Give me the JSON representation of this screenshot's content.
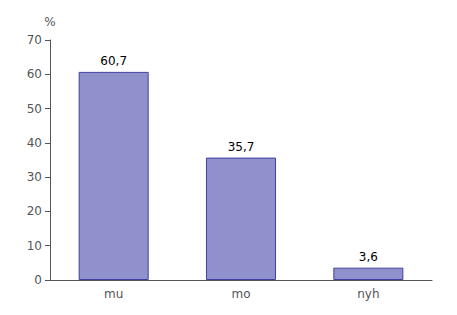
{
  "chart_data": {
    "type": "bar",
    "ylabel": "%",
    "categories": [
      "mu",
      "mo",
      "nyh"
    ],
    "values": [
      60.7,
      35.7,
      3.6
    ],
    "value_labels": [
      "60,7",
      "35,7",
      "3,6"
    ],
    "data_labels": true,
    "color": "#9090cc",
    "ylim": [
      0,
      70
    ],
    "yticks": [
      0,
      10,
      20,
      30,
      40,
      50,
      60,
      70
    ],
    "grid": false
  }
}
